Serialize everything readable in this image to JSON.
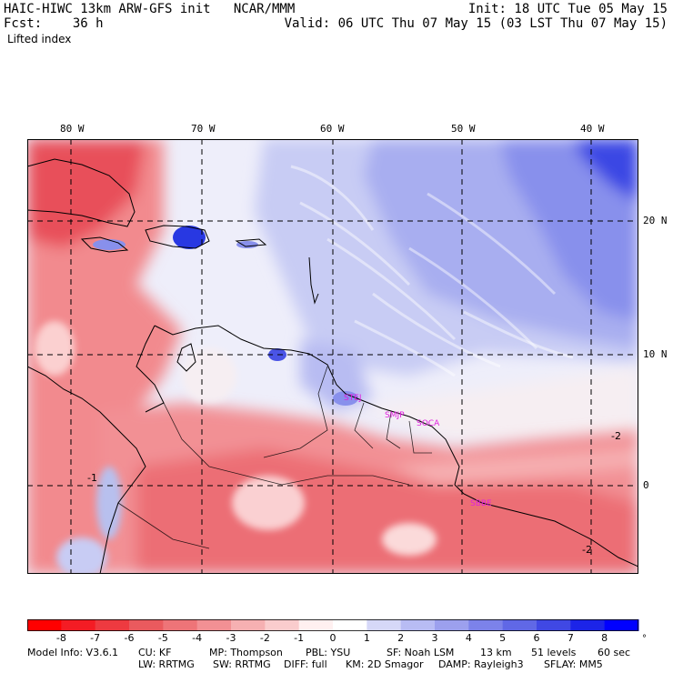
{
  "header": {
    "title_left": "HAIC-HIWC 13km ARW-GFS init   NCAR/MMM",
    "forecast": "Fcst:    36 h",
    "field": "Lifted index",
    "init": "Init: 18 UTC Tue 05 May 15",
    "valid": "Valid: 06 UTC Thu 07 May 15 (03 LST Thu 07 May 15)"
  },
  "map": {
    "lon_labels": [
      "80 W",
      "70 W",
      "60 W",
      "50 W",
      "40 W"
    ],
    "lat_labels": [
      "20 N",
      "10 N",
      "0"
    ],
    "stations": [
      "STEJ",
      "SMJP",
      "SOCA",
      "SBBE"
    ],
    "contour_labels": [
      "-2",
      "-1",
      "-2"
    ],
    "colors": {
      "strong_neg": "#e8404a",
      "mid_neg": "#f28a8e",
      "weak_neg": "#fbd0d0",
      "neutral": "#f4f2f8",
      "weak_pos": "#c8ccf4",
      "mid_pos": "#8890ec",
      "strong_pos": "#2030e0",
      "station": "#e020e0"
    }
  },
  "colorbar": {
    "ticks": [
      "-8",
      "-7",
      "-6",
      "-5",
      "-4",
      "-3",
      "-2",
      "-1",
      "0",
      "1",
      "2",
      "3",
      "4",
      "5",
      "6",
      "7",
      "8"
    ],
    "unit": "°C",
    "colors": [
      "#ff0000",
      "#f41c24",
      "#ee3a40",
      "#ea5a5e",
      "#ee7478",
      "#f29094",
      "#f6b0b2",
      "#facccd",
      "#fff0f0",
      "#ffffff",
      "#d6d8f8",
      "#b8bcf4",
      "#9ca0ee",
      "#7c82ea",
      "#6068e6",
      "#4048e4",
      "#1c24e8",
      "#0000ff"
    ]
  },
  "footer": {
    "line1": {
      "model": "Model Info: V3.6.1",
      "cu": "CU: KF",
      "mp": "MP: Thompson",
      "pbl": "PBL: YSU",
      "sf": "SF: Noah LSM",
      "res": "13 km",
      "levels": "51 levels",
      "dt": "60 sec"
    },
    "line2": {
      "lw": "LW: RRTMG",
      "sw": "SW: RRTMG",
      "diff": "DIFF: full",
      "km": "KM: 2D Smagor",
      "damp": "DAMP: Rayleigh3",
      "sflay": "SFLAY: MM5"
    }
  }
}
